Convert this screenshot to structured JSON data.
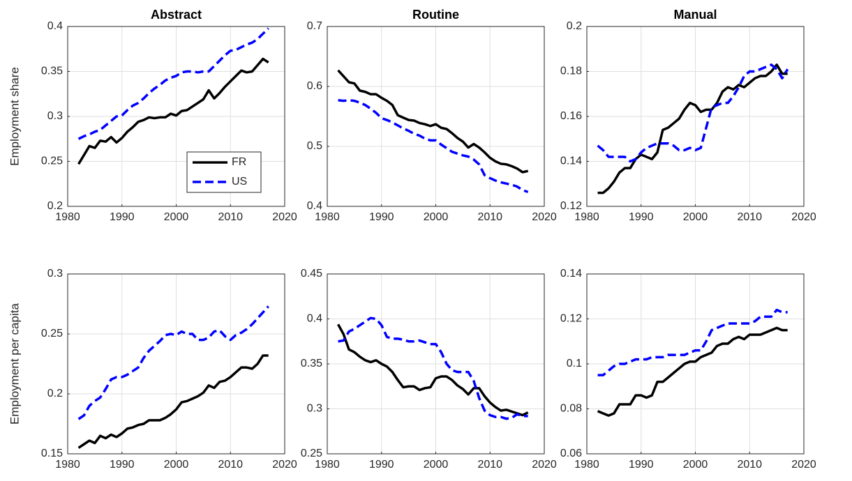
{
  "chart_data": [
    {
      "type": "line",
      "title": "Abstract",
      "ylabel": "Employment share",
      "legend": "southeast",
      "grid": true,
      "x": [
        1982,
        1983,
        1984,
        1985,
        1986,
        1987,
        1988,
        1989,
        1990,
        1991,
        1992,
        1993,
        1994,
        1995,
        1996,
        1997,
        1998,
        1999,
        2000,
        2001,
        2002,
        2003,
        2004,
        2005,
        2006,
        2007,
        2008,
        2009,
        2010,
        2011,
        2012,
        2013,
        2014,
        2015,
        2016,
        2017
      ],
      "xlim": [
        1980,
        2020
      ],
      "xticks": [
        1980,
        1990,
        2000,
        2010,
        2020
      ],
      "ylim": [
        0.2,
        0.4
      ],
      "yticks": [
        0.2,
        0.25,
        0.3,
        0.35,
        0.4
      ],
      "series": [
        {
          "name": "FR",
          "color": "#000000",
          "style": "solid",
          "values": [
            0.247,
            0.257,
            0.267,
            0.265,
            0.273,
            0.272,
            0.277,
            0.271,
            0.276,
            0.283,
            0.288,
            0.294,
            0.296,
            0.299,
            0.298,
            0.299,
            0.299,
            0.303,
            0.301,
            0.306,
            0.307,
            0.311,
            0.315,
            0.319,
            0.329,
            0.32,
            0.326,
            0.333,
            0.339,
            0.345,
            0.351,
            0.349,
            0.35,
            0.357,
            0.364,
            0.36
          ]
        },
        {
          "name": "US",
          "color": "#0000ff",
          "style": "dash",
          "values": [
            0.275,
            0.278,
            0.28,
            0.283,
            0.285,
            0.29,
            0.295,
            0.3,
            0.301,
            0.307,
            0.312,
            0.315,
            0.32,
            0.326,
            0.331,
            0.335,
            0.34,
            0.343,
            0.345,
            0.349,
            0.35,
            0.35,
            0.349,
            0.35,
            0.35,
            0.356,
            0.362,
            0.368,
            0.373,
            0.374,
            0.377,
            0.38,
            0.382,
            0.386,
            0.392,
            0.398
          ]
        }
      ]
    },
    {
      "type": "line",
      "title": "Routine",
      "grid": true,
      "x": [
        1982,
        1983,
        1984,
        1985,
        1986,
        1987,
        1988,
        1989,
        1990,
        1991,
        1992,
        1993,
        1994,
        1995,
        1996,
        1997,
        1998,
        1999,
        2000,
        2001,
        2002,
        2003,
        2004,
        2005,
        2006,
        2007,
        2008,
        2009,
        2010,
        2011,
        2012,
        2013,
        2014,
        2015,
        2016,
        2017
      ],
      "xlim": [
        1980,
        2020
      ],
      "xticks": [
        1980,
        1990,
        2000,
        2010,
        2020
      ],
      "ylim": [
        0.4,
        0.7
      ],
      "yticks": [
        0.4,
        0.5,
        0.6,
        0.7
      ],
      "series": [
        {
          "color": "#000000",
          "style": "solid",
          "values": [
            0.627,
            0.617,
            0.607,
            0.605,
            0.593,
            0.591,
            0.587,
            0.587,
            0.581,
            0.576,
            0.569,
            0.552,
            0.548,
            0.544,
            0.543,
            0.539,
            0.537,
            0.534,
            0.537,
            0.531,
            0.529,
            0.522,
            0.514,
            0.508,
            0.498,
            0.504,
            0.498,
            0.49,
            0.481,
            0.475,
            0.471,
            0.47,
            0.467,
            0.463,
            0.457,
            0.459
          ]
        },
        {
          "color": "#0000ff",
          "style": "dash",
          "values": [
            0.577,
            0.576,
            0.577,
            0.576,
            0.573,
            0.569,
            0.563,
            0.556,
            0.547,
            0.544,
            0.54,
            0.535,
            0.53,
            0.526,
            0.521,
            0.518,
            0.513,
            0.51,
            0.51,
            0.503,
            0.497,
            0.491,
            0.488,
            0.485,
            0.483,
            0.478,
            0.47,
            0.452,
            0.447,
            0.443,
            0.44,
            0.438,
            0.436,
            0.433,
            0.427,
            0.424
          ]
        }
      ]
    },
    {
      "type": "line",
      "title": "Manual",
      "grid": true,
      "x": [
        1982,
        1983,
        1984,
        1985,
        1986,
        1987,
        1988,
        1989,
        1990,
        1991,
        1992,
        1993,
        1994,
        1995,
        1996,
        1997,
        1998,
        1999,
        2000,
        2001,
        2002,
        2003,
        2004,
        2005,
        2006,
        2007,
        2008,
        2009,
        2010,
        2011,
        2012,
        2013,
        2014,
        2015,
        2016,
        2017
      ],
      "xlim": [
        1980,
        2020
      ],
      "xticks": [
        1980,
        1990,
        2000,
        2010,
        2020
      ],
      "ylim": [
        0.12,
        0.2
      ],
      "yticks": [
        0.12,
        0.14,
        0.16,
        0.18,
        0.2
      ],
      "series": [
        {
          "color": "#000000",
          "style": "solid",
          "values": [
            0.126,
            0.126,
            0.128,
            0.131,
            0.135,
            0.137,
            0.137,
            0.141,
            0.143,
            0.142,
            0.141,
            0.144,
            0.154,
            0.155,
            0.157,
            0.159,
            0.163,
            0.166,
            0.165,
            0.162,
            0.163,
            0.163,
            0.166,
            0.171,
            0.173,
            0.172,
            0.174,
            0.173,
            0.175,
            0.177,
            0.178,
            0.178,
            0.18,
            0.183,
            0.179,
            0.179
          ]
        },
        {
          "color": "#0000ff",
          "style": "dash",
          "values": [
            0.147,
            0.145,
            0.142,
            0.142,
            0.142,
            0.142,
            0.14,
            0.141,
            0.144,
            0.146,
            0.147,
            0.148,
            0.148,
            0.148,
            0.147,
            0.145,
            0.145,
            0.146,
            0.145,
            0.146,
            0.155,
            0.164,
            0.165,
            0.166,
            0.166,
            0.169,
            0.173,
            0.178,
            0.18,
            0.18,
            0.181,
            0.182,
            0.183,
            0.181,
            0.177,
            0.181
          ]
        }
      ]
    },
    {
      "type": "line",
      "ylabel": "Employment per capita",
      "grid": true,
      "x": [
        1982,
        1983,
        1984,
        1985,
        1986,
        1987,
        1988,
        1989,
        1990,
        1991,
        1992,
        1993,
        1994,
        1995,
        1996,
        1997,
        1998,
        1999,
        2000,
        2001,
        2002,
        2003,
        2004,
        2005,
        2006,
        2007,
        2008,
        2009,
        2010,
        2011,
        2012,
        2013,
        2014,
        2015,
        2016,
        2017
      ],
      "xlim": [
        1980,
        2020
      ],
      "xticks": [
        1980,
        1990,
        2000,
        2010,
        2020
      ],
      "ylim": [
        0.15,
        0.3
      ],
      "yticks": [
        0.15,
        0.2,
        0.25,
        0.3
      ],
      "series": [
        {
          "color": "#000000",
          "style": "solid",
          "values": [
            0.155,
            0.158,
            0.161,
            0.159,
            0.165,
            0.163,
            0.166,
            0.164,
            0.167,
            0.171,
            0.172,
            0.174,
            0.175,
            0.178,
            0.178,
            0.178,
            0.18,
            0.183,
            0.187,
            0.193,
            0.194,
            0.196,
            0.198,
            0.201,
            0.207,
            0.205,
            0.21,
            0.211,
            0.214,
            0.218,
            0.222,
            0.222,
            0.221,
            0.225,
            0.232,
            0.232
          ]
        },
        {
          "color": "#0000ff",
          "style": "dash",
          "values": [
            0.179,
            0.182,
            0.19,
            0.194,
            0.197,
            0.204,
            0.212,
            0.214,
            0.214,
            0.216,
            0.219,
            0.222,
            0.23,
            0.236,
            0.24,
            0.244,
            0.249,
            0.25,
            0.249,
            0.252,
            0.25,
            0.25,
            0.245,
            0.245,
            0.247,
            0.252,
            0.253,
            0.248,
            0.245,
            0.249,
            0.251,
            0.254,
            0.258,
            0.263,
            0.268,
            0.273
          ]
        }
      ]
    },
    {
      "type": "line",
      "grid": true,
      "x": [
        1982,
        1983,
        1984,
        1985,
        1986,
        1987,
        1988,
        1989,
        1990,
        1991,
        1992,
        1993,
        1994,
        1995,
        1996,
        1997,
        1998,
        1999,
        2000,
        2001,
        2002,
        2003,
        2004,
        2005,
        2006,
        2007,
        2008,
        2009,
        2010,
        2011,
        2012,
        2013,
        2014,
        2015,
        2016,
        2017
      ],
      "xlim": [
        1980,
        2020
      ],
      "xticks": [
        1980,
        1990,
        2000,
        2010,
        2020
      ],
      "ylim": [
        0.25,
        0.45
      ],
      "yticks": [
        0.25,
        0.3,
        0.35,
        0.4,
        0.45
      ],
      "series": [
        {
          "color": "#000000",
          "style": "solid",
          "values": [
            0.394,
            0.383,
            0.366,
            0.363,
            0.358,
            0.354,
            0.352,
            0.354,
            0.35,
            0.347,
            0.341,
            0.332,
            0.324,
            0.325,
            0.325,
            0.321,
            0.323,
            0.324,
            0.334,
            0.336,
            0.336,
            0.332,
            0.326,
            0.322,
            0.316,
            0.323,
            0.323,
            0.314,
            0.307,
            0.302,
            0.298,
            0.299,
            0.297,
            0.295,
            0.293,
            0.296
          ]
        },
        {
          "color": "#0000ff",
          "style": "dash",
          "values": [
            0.375,
            0.376,
            0.386,
            0.389,
            0.393,
            0.397,
            0.401,
            0.4,
            0.393,
            0.38,
            0.378,
            0.378,
            0.377,
            0.375,
            0.375,
            0.376,
            0.374,
            0.372,
            0.372,
            0.363,
            0.35,
            0.343,
            0.341,
            0.341,
            0.341,
            0.331,
            0.312,
            0.298,
            0.293,
            0.291,
            0.291,
            0.289,
            0.29,
            0.294,
            0.292,
            0.292
          ]
        }
      ]
    },
    {
      "type": "line",
      "grid": true,
      "x": [
        1982,
        1983,
        1984,
        1985,
        1986,
        1987,
        1988,
        1989,
        1990,
        1991,
        1992,
        1993,
        1994,
        1995,
        1996,
        1997,
        1998,
        1999,
        2000,
        2001,
        2002,
        2003,
        2004,
        2005,
        2006,
        2007,
        2008,
        2009,
        2010,
        2011,
        2012,
        2013,
        2014,
        2015,
        2016,
        2017
      ],
      "xlim": [
        1980,
        2020
      ],
      "xticks": [
        1980,
        1990,
        2000,
        2010,
        2020
      ],
      "ylim": [
        0.06,
        0.14
      ],
      "yticks": [
        0.06,
        0.08,
        0.1,
        0.12,
        0.14
      ],
      "series": [
        {
          "color": "#000000",
          "style": "solid",
          "values": [
            0.079,
            0.078,
            0.077,
            0.078,
            0.082,
            0.082,
            0.082,
            0.086,
            0.086,
            0.085,
            0.086,
            0.092,
            0.092,
            0.094,
            0.096,
            0.098,
            0.1,
            0.101,
            0.101,
            0.103,
            0.104,
            0.105,
            0.108,
            0.109,
            0.109,
            0.111,
            0.112,
            0.111,
            0.113,
            0.113,
            0.113,
            0.114,
            0.115,
            0.116,
            0.115,
            0.115
          ]
        },
        {
          "color": "#0000ff",
          "style": "dash",
          "values": [
            0.095,
            0.095,
            0.097,
            0.099,
            0.1,
            0.1,
            0.101,
            0.102,
            0.102,
            0.102,
            0.103,
            0.103,
            0.103,
            0.104,
            0.104,
            0.104,
            0.104,
            0.105,
            0.106,
            0.106,
            0.11,
            0.115,
            0.116,
            0.117,
            0.118,
            0.118,
            0.118,
            0.118,
            0.118,
            0.119,
            0.121,
            0.121,
            0.121,
            0.124,
            0.123,
            0.123
          ]
        }
      ]
    }
  ]
}
